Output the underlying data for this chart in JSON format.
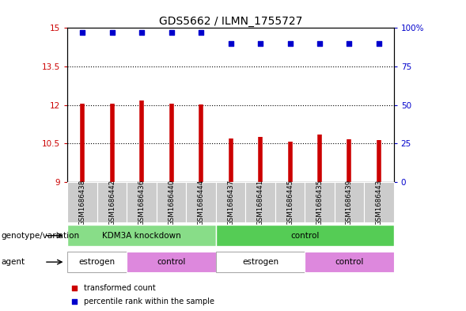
{
  "title": "GDS5662 / ILMN_1755727",
  "samples": [
    "GSM1686438",
    "GSM1686442",
    "GSM1686436",
    "GSM1686440",
    "GSM1686444",
    "GSM1686437",
    "GSM1686441",
    "GSM1686445",
    "GSM1686435",
    "GSM1686439",
    "GSM1686443"
  ],
  "bar_values": [
    12.05,
    12.05,
    12.18,
    12.05,
    12.02,
    10.68,
    10.75,
    10.56,
    10.85,
    10.65,
    10.62
  ],
  "bar_bottom": 9.0,
  "percentile_values": [
    97,
    97,
    97,
    97,
    97,
    90,
    90,
    90,
    90,
    90,
    90
  ],
  "ylim_left": [
    9,
    15
  ],
  "ylim_right": [
    0,
    100
  ],
  "yticks_left": [
    9,
    10.5,
    12,
    13.5,
    15
  ],
  "ytick_labels_left": [
    "9",
    "10.5",
    "12",
    "13.5",
    "15"
  ],
  "yticks_right": [
    0,
    25,
    50,
    75,
    100
  ],
  "ytick_labels_right": [
    "0",
    "25",
    "50",
    "75",
    "100%"
  ],
  "bar_color": "#cc0000",
  "percentile_color": "#0000cc",
  "genotype_row": {
    "label": "genotype/variation",
    "groups": [
      {
        "text": "KDM3A knockdown",
        "span": [
          0,
          4
        ],
        "color": "#88dd88"
      },
      {
        "text": "control",
        "span": [
          5,
          10
        ],
        "color": "#55cc55"
      }
    ]
  },
  "agent_row": {
    "label": "agent",
    "groups": [
      {
        "text": "estrogen",
        "span": [
          0,
          1
        ],
        "color": "#ffffff"
      },
      {
        "text": "control",
        "span": [
          2,
          4
        ],
        "color": "#dd88dd"
      },
      {
        "text": "estrogen",
        "span": [
          5,
          7
        ],
        "color": "#ffffff"
      },
      {
        "text": "control",
        "span": [
          8,
          10
        ],
        "color": "#dd88dd"
      }
    ]
  },
  "legend_items": [
    {
      "label": "transformed count",
      "color": "#cc0000"
    },
    {
      "label": "percentile rank within the sample",
      "color": "#0000cc"
    }
  ],
  "sample_bg_color": "#cccccc",
  "title_fontsize": 10,
  "tick_fontsize": 7.5,
  "sample_fontsize": 6.2,
  "row_label_fontsize": 7.5,
  "annotation_fontsize": 7.5,
  "legend_fontsize": 7
}
